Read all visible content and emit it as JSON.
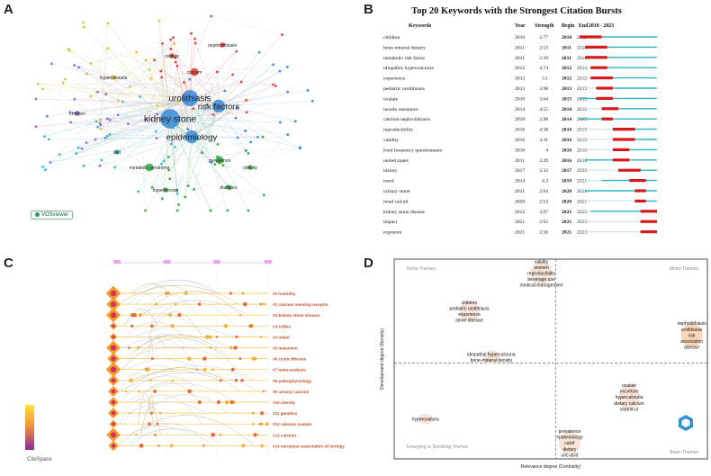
{
  "panels": {
    "a": "A",
    "b": "B",
    "c": "C",
    "d": "D"
  },
  "chart_data": [
    {
      "type": "network",
      "panel": "A",
      "software_label": "VOSviewer",
      "nodes": [
        {
          "label": "urolithiasis",
          "cluster": "blue",
          "weight": 5
        },
        {
          "label": "kidney stone",
          "cluster": "blue",
          "weight": 6
        },
        {
          "label": "risk factors",
          "cluster": "blue",
          "weight": 4
        },
        {
          "label": "epidemiology",
          "cluster": "blue",
          "weight": 4
        },
        {
          "label": "calcium",
          "cluster": "red",
          "weight": 2
        },
        {
          "label": "oxalate",
          "cluster": "red",
          "weight": 1
        },
        {
          "label": "nephrolithiasis",
          "cluster": "red",
          "weight": 1
        },
        {
          "label": "hypercalciuria",
          "cluster": "yellow",
          "weight": 1
        },
        {
          "label": "prevalence",
          "cluster": "green",
          "weight": 2
        },
        {
          "label": "metabolic syndrome",
          "cluster": "green",
          "weight": 2
        },
        {
          "label": "obesity",
          "cluster": "green",
          "weight": 1
        },
        {
          "label": "hypertension",
          "cluster": "green",
          "weight": 1
        },
        {
          "label": "diabetes",
          "cluster": "green",
          "weight": 1
        },
        {
          "label": "children",
          "cluster": "purple",
          "weight": 1
        },
        {
          "label": "diet",
          "cluster": "cyan",
          "weight": 1
        }
      ]
    },
    {
      "type": "table",
      "panel": "B",
      "title": "Top 20 Keywords with the Strongest Citation Bursts",
      "columns": [
        "Keywords",
        "Year",
        "Strength",
        "Begin",
        "End",
        "2010 - 2023"
      ],
      "range_start": 2010,
      "range_end": 2023,
      "rows": [
        {
          "keyword": "children",
          "year": "2010",
          "strength": "2.77",
          "begin": "2010",
          "end": "2013"
        },
        {
          "keyword": "bone mineral density",
          "year": "2011",
          "strength": "2.53",
          "begin": "2011",
          "end": "2014"
        },
        {
          "keyword": "metabolic risk factor",
          "year": "2011",
          "strength": "2.39",
          "begin": "2011",
          "end": "2014"
        },
        {
          "keyword": "idiopathic hypercalciuria",
          "year": "2012",
          "strength": "4.74",
          "begin": "2012",
          "end": "2014"
        },
        {
          "keyword": "experience",
          "year": "2012",
          "strength": "3.1",
          "begin": "2012",
          "end": "2015"
        },
        {
          "keyword": "pediatric urolithiasis",
          "year": "2013",
          "strength": "3.98",
          "begin": "2013",
          "end": "2015"
        },
        {
          "keyword": "oxalate",
          "year": "2010",
          "strength": "3.64",
          "begin": "2013",
          "end": "2015"
        },
        {
          "keyword": "insulin resistance",
          "year": "2014",
          "strength": "4.55",
          "begin": "2014",
          "end": "2016"
        },
        {
          "keyword": "calcium nephrolithiasis",
          "year": "2010",
          "strength": "2.98",
          "begin": "2014",
          "end": "2015"
        },
        {
          "keyword": "reproducibility",
          "year": "2016",
          "strength": "4.38",
          "begin": "2016",
          "end": "2019"
        },
        {
          "keyword": "validity",
          "year": "2016",
          "strength": "4.31",
          "begin": "2016",
          "end": "2019"
        },
        {
          "keyword": "food frequency questionnaire",
          "year": "2016",
          "strength": "4",
          "begin": "2016",
          "end": "2018"
        },
        {
          "keyword": "united states",
          "year": "2011",
          "strength": "2.39",
          "begin": "2016",
          "end": "2018"
        },
        {
          "keyword": "history",
          "year": "2017",
          "strength": "2.32",
          "begin": "2017",
          "end": "2020"
        },
        {
          "keyword": "trend",
          "year": "2014",
          "strength": "4.3",
          "begin": "2019",
          "end": "2021"
        },
        {
          "keyword": "urinary stone",
          "year": "2011",
          "strength": "2.94",
          "begin": "2020",
          "end": "2021"
        },
        {
          "keyword": "renal calculi",
          "year": "2020",
          "strength": "2.53",
          "begin": "2020",
          "end": "2021"
        },
        {
          "keyword": "kidney stone disease",
          "year": "2012",
          "strength": "3.97",
          "begin": "2021",
          "end": "2023"
        },
        {
          "keyword": "impact",
          "year": "2021",
          "strength": "2.92",
          "begin": "2021",
          "end": "2023"
        },
        {
          "keyword": "exposure",
          "year": "2021",
          "strength": "2.56",
          "begin": "2021",
          "end": "2023"
        }
      ],
      "colors": {
        "burst": "#d7191c",
        "base": "#2bb5c0",
        "prestart": "#cfe3ea"
      }
    },
    {
      "type": "timeline",
      "panel": "C",
      "clusters": [
        "#0 humidity",
        "#1 calcium sensing receptor",
        "#2 kidney stone disease",
        "#3 coffee",
        "#4 infant",
        "#5 melamine",
        "#6 cystic fibrosis",
        "#7 meta-analysis",
        "#8 pathophysiology",
        "#9 urinary calcium",
        "#10 obesity",
        "#11 genetics",
        "#12 calcium oxalate",
        "#13 calcium",
        "#14 european association of urology"
      ],
      "software_label": "CiteSpace",
      "label_color": "#c0502a"
    },
    {
      "type": "scatter",
      "panel": "D",
      "xlabel": "Relevance degree\n(Centrality)",
      "ylabel": "Development degree\n(Density)",
      "quadrants": {
        "top_left": "Niche Themes",
        "top_right": "Motor Themes",
        "bottom_left": "Emerging or\nDeclining Themes",
        "bottom_right": "Basic Themes"
      },
      "themes": [
        {
          "words": [
            "validity",
            "women",
            "reproducibility",
            "beverage use",
            "medical-management"
          ],
          "centrality": 0.47,
          "density": 0.93
        },
        {
          "words": [
            "children",
            "pediatric urolithiasis",
            "experience",
            "stone disease"
          ],
          "centrality": 0.24,
          "density": 0.74
        },
        {
          "words": [
            "nephrolithiasis",
            "urolithiasis",
            "risk",
            "association",
            "disease"
          ],
          "centrality": 0.95,
          "density": 0.62
        },
        {
          "words": [
            "idiopathic hypercalciuria",
            "bone-mineral density"
          ],
          "centrality": 0.31,
          "density": 0.51
        },
        {
          "words": [
            "oxalate",
            "excretion",
            "hypercalciuria",
            "dietary calcium",
            "vitamin-d"
          ],
          "centrality": 0.75,
          "density": 0.31
        },
        {
          "words": [
            "hyperoxaluria"
          ],
          "centrality": 0.1,
          "density": 0.2
        },
        {
          "words": [
            "prevalence",
            "epidemiology",
            "calcif",
            "dietary",
            "uric-acid"
          ],
          "centrality": 0.56,
          "density": 0.08
        }
      ]
    }
  ]
}
